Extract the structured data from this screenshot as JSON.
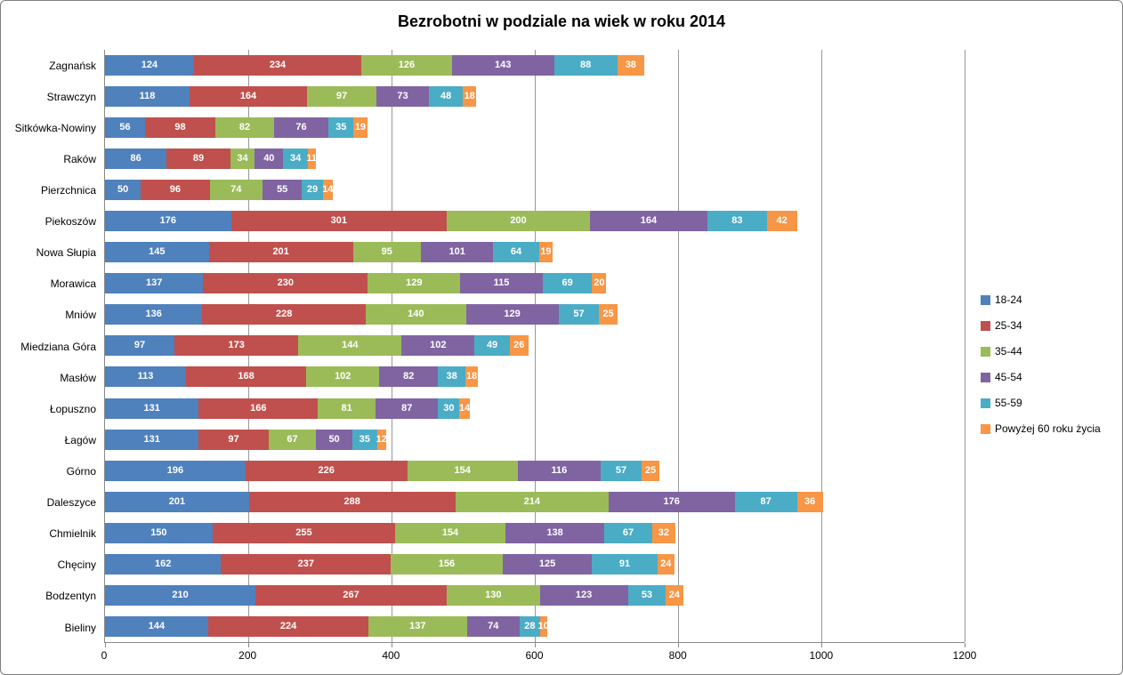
{
  "chart_data": {
    "type": "bar",
    "orientation": "horizontal",
    "stacked": true,
    "title": "Bezrobotni w podziale na wiek w roku 2014",
    "categories": [
      "Zagnańsk",
      "Strawczyn",
      "Sitkówka-Nowiny",
      "Raków",
      "Pierzchnica",
      "Piekoszów",
      "Nowa Słupia",
      "Morawica",
      "Mniów",
      "Miedziana Góra",
      "Masłów",
      "Łopuszno",
      "Łagów",
      "Górno",
      "Daleszyce",
      "Chmielnik",
      "Chęciny",
      "Bodzentyn",
      "Bieliny"
    ],
    "series": [
      {
        "name": "18-24",
        "color": "#4F81BD",
        "values": [
          124,
          118,
          56,
          86,
          50,
          176,
          145,
          137,
          136,
          97,
          113,
          131,
          131,
          196,
          201,
          150,
          162,
          210,
          144
        ]
      },
      {
        "name": "25-34",
        "color": "#C0504D",
        "values": [
          234,
          164,
          98,
          89,
          96,
          301,
          201,
          230,
          228,
          173,
          168,
          166,
          97,
          226,
          288,
          255,
          237,
          267,
          224
        ]
      },
      {
        "name": "35-44",
        "color": "#9BBB59",
        "values": [
          126,
          97,
          82,
          34,
          74,
          200,
          95,
          129,
          140,
          144,
          102,
          81,
          67,
          154,
          214,
          154,
          156,
          130,
          137
        ]
      },
      {
        "name": "45-54",
        "color": "#8064A2",
        "values": [
          143,
          73,
          76,
          40,
          55,
          164,
          101,
          115,
          129,
          102,
          82,
          87,
          50,
          116,
          176,
          138,
          125,
          123,
          74
        ]
      },
      {
        "name": "55-59",
        "color": "#4BACC6",
        "values": [
          88,
          48,
          35,
          34,
          29,
          83,
          64,
          69,
          57,
          49,
          38,
          30,
          35,
          57,
          87,
          67,
          91,
          53,
          28
        ]
      },
      {
        "name": "Powyżej 60 roku życia",
        "color": "#F79646",
        "values": [
          38,
          18,
          19,
          11,
          14,
          42,
          19,
          20,
          25,
          26,
          18,
          14,
          12,
          25,
          36,
          32,
          24,
          24,
          10
        ]
      }
    ],
    "xlim": [
      0,
      1200
    ],
    "x_ticks": [
      0,
      200,
      400,
      600,
      800,
      1000,
      1200
    ],
    "grid": true,
    "legend_position": "right",
    "value_labels": "inside-white-bold",
    "colors": {
      "axis": "#898989",
      "gridline": "#989898",
      "label_text": "#000000",
      "value_text": "#ffffff",
      "background": "#ffffff"
    }
  }
}
